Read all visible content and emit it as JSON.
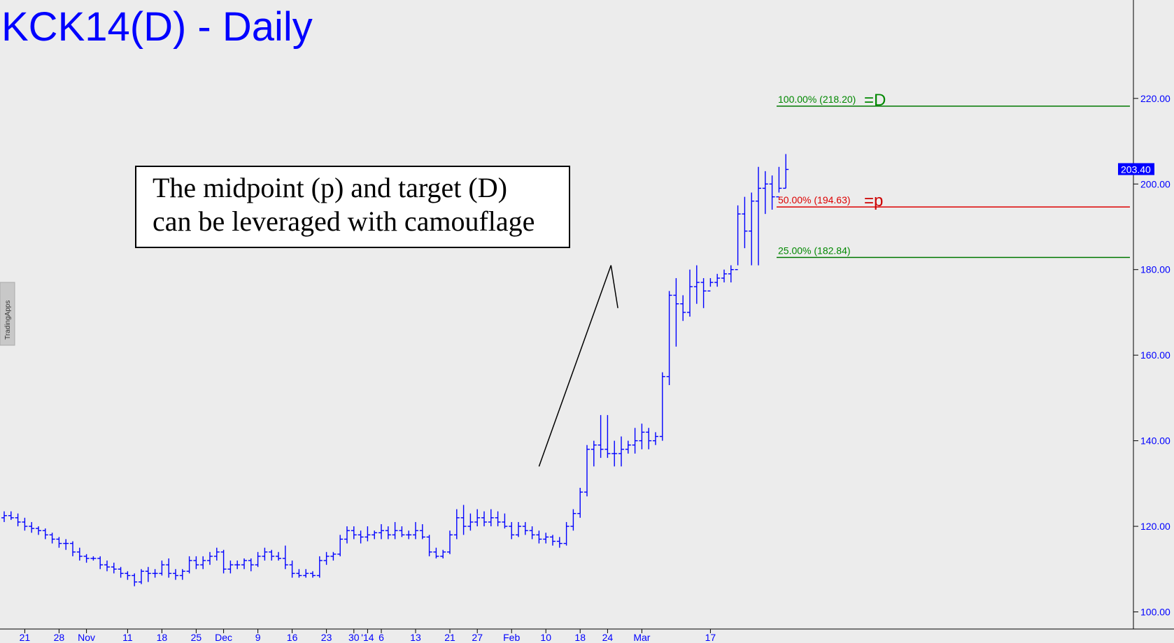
{
  "chart_data": {
    "type": "bar",
    "subtype": "ohlc",
    "title": "KCK14(D) - Daily",
    "annotation": {
      "line1": "The midpoint (p) and target (D)",
      "line2": "can be leveraged with camouflage"
    },
    "watermark": "TradingApps",
    "last_price": "203.40",
    "ylim": [
      96,
      243
    ],
    "y_ticks": [
      "100.00",
      "120.00",
      "140.00",
      "160.00",
      "180.00",
      "200.00",
      "220.00"
    ],
    "x_ticks": [
      {
        "i": 3,
        "label": "21"
      },
      {
        "i": 8,
        "label": "28"
      },
      {
        "i": 12,
        "label": "Nov"
      },
      {
        "i": 18,
        "label": "11"
      },
      {
        "i": 23,
        "label": "18"
      },
      {
        "i": 28,
        "label": "25"
      },
      {
        "i": 32,
        "label": "Dec"
      },
      {
        "i": 37,
        "label": "9"
      },
      {
        "i": 42,
        "label": "16"
      },
      {
        "i": 47,
        "label": "23"
      },
      {
        "i": 51,
        "label": "30"
      },
      {
        "i": 53,
        "label": "'14"
      },
      {
        "i": 55,
        "label": "6"
      },
      {
        "i": 60,
        "label": "13"
      },
      {
        "i": 65,
        "label": "21"
      },
      {
        "i": 69,
        "label": "27"
      },
      {
        "i": 74,
        "label": "Feb"
      },
      {
        "i": 79,
        "label": "10"
      },
      {
        "i": 84,
        "label": "18"
      },
      {
        "i": 88,
        "label": "24"
      },
      {
        "i": 93,
        "label": "Mar"
      },
      {
        "i": 103,
        "label": "17"
      }
    ],
    "fib_levels": [
      {
        "label": "100.00% (218.20)",
        "suffix": "=D",
        "value": 218.2,
        "color": "#007700",
        "label_color": "#008800",
        "suffix_color": "#008800"
      },
      {
        "label": "50.00% (194.63)",
        "suffix": "=p",
        "value": 194.63,
        "color": "#dd0000",
        "label_color": "#dd0000",
        "suffix_color": "#cc0000"
      },
      {
        "label": "25.00% (182.84)",
        "suffix": "",
        "value": 182.84,
        "color": "#007700",
        "label_color": "#008800",
        "suffix_color": "#008800"
      }
    ],
    "pattern_line": [
      {
        "i": 78,
        "v": 134
      },
      {
        "i": 88.5,
        "v": 181
      },
      {
        "i": 89.5,
        "v": 171
      }
    ],
    "ohlc": [
      [
        0,
        122,
        123.5,
        121,
        122.5
      ],
      [
        1,
        122.5,
        123.5,
        121.5,
        122
      ],
      [
        2,
        122,
        123,
        120,
        121
      ],
      [
        3,
        121,
        122,
        119,
        120
      ],
      [
        4,
        120,
        121,
        118.5,
        119.5
      ],
      [
        5,
        119.5,
        120,
        118,
        119
      ],
      [
        6,
        119,
        119.5,
        117,
        118
      ],
      [
        7,
        118,
        118.5,
        116,
        117
      ],
      [
        8,
        117,
        117.5,
        115,
        116
      ],
      [
        9,
        116,
        117,
        114.5,
        116
      ],
      [
        10,
        116,
        116.5,
        113,
        114
      ],
      [
        11,
        114,
        115,
        112,
        113
      ],
      [
        12,
        113,
        113.5,
        111.5,
        112.5
      ],
      [
        13,
        112.5,
        113,
        112,
        112.5
      ],
      [
        14,
        112.5,
        113,
        110,
        111
      ],
      [
        15,
        111,
        112,
        109.5,
        110.5
      ],
      [
        16,
        110.5,
        111.5,
        109,
        110
      ],
      [
        17,
        110,
        110.5,
        108,
        109
      ],
      [
        18,
        109,
        109.5,
        107.5,
        108.5
      ],
      [
        19,
        108.5,
        109,
        106,
        107
      ],
      [
        20,
        107,
        110,
        106.5,
        109.5
      ],
      [
        21,
        109.5,
        110.5,
        107,
        109
      ],
      [
        22,
        109,
        110,
        108,
        109
      ],
      [
        23,
        109,
        112,
        108.5,
        111
      ],
      [
        24,
        111,
        112.5,
        108,
        109
      ],
      [
        25,
        109,
        110,
        107.5,
        108.5
      ],
      [
        26,
        108.5,
        110,
        107.5,
        109.5
      ],
      [
        27,
        109.5,
        113,
        109,
        112
      ],
      [
        28,
        112,
        113,
        110,
        111
      ],
      [
        29,
        111,
        113,
        110,
        112
      ],
      [
        30,
        112,
        114,
        111,
        113
      ],
      [
        31,
        113,
        115,
        112,
        114
      ],
      [
        32,
        114,
        114.5,
        109,
        110
      ],
      [
        33,
        110,
        112,
        109,
        111
      ],
      [
        34,
        111,
        112,
        110,
        111
      ],
      [
        35,
        111,
        112.5,
        110,
        112
      ],
      [
        36,
        112,
        112.5,
        109.5,
        111
      ],
      [
        37,
        111,
        114,
        110.5,
        113
      ],
      [
        38,
        113,
        115,
        112,
        114
      ],
      [
        39,
        114,
        114.5,
        112,
        113
      ],
      [
        40,
        113,
        114,
        112,
        112.5
      ],
      [
        41,
        112.5,
        115.5,
        110,
        111
      ],
      [
        42,
        111,
        112,
        108,
        109
      ],
      [
        43,
        109,
        110,
        108,
        108.5
      ],
      [
        44,
        108.5,
        110,
        108,
        109
      ],
      [
        45,
        109,
        109.5,
        108,
        108.5
      ],
      [
        46,
        108.5,
        113,
        108,
        112
      ],
      [
        47,
        112,
        114,
        111,
        113
      ],
      [
        48,
        113,
        114,
        112,
        113.5
      ],
      [
        49,
        113.5,
        118,
        113,
        117
      ],
      [
        50,
        117,
        120,
        116,
        119
      ],
      [
        51,
        119,
        120,
        117,
        118
      ],
      [
        52,
        118,
        119,
        116,
        117.5
      ],
      [
        53,
        117.5,
        120,
        116.5,
        118
      ],
      [
        54,
        118,
        119,
        117,
        118.5
      ],
      [
        55,
        118.5,
        120.5,
        117,
        119
      ],
      [
        56,
        119,
        120,
        117,
        118
      ],
      [
        57,
        118,
        121,
        117,
        119
      ],
      [
        58,
        119,
        120,
        117.5,
        118
      ],
      [
        59,
        118,
        119,
        117,
        118
      ],
      [
        60,
        118,
        121,
        117,
        119
      ],
      [
        61,
        119,
        120.5,
        117,
        117.5
      ],
      [
        62,
        117.5,
        118,
        113,
        114
      ],
      [
        63,
        114,
        115,
        112.5,
        113
      ],
      [
        64,
        113,
        114.5,
        112.5,
        114
      ],
      [
        65,
        114,
        119,
        113.5,
        118
      ],
      [
        66,
        118,
        124,
        117,
        122
      ],
      [
        67,
        122,
        125,
        118,
        120
      ],
      [
        68,
        120,
        123,
        119,
        121
      ],
      [
        69,
        121,
        124,
        120,
        122
      ],
      [
        70,
        122,
        123.5,
        120,
        121
      ],
      [
        71,
        121,
        124,
        120,
        122
      ],
      [
        72,
        122,
        123.5,
        120,
        121
      ],
      [
        73,
        121,
        123,
        119.5,
        120
      ],
      [
        74,
        120,
        121,
        117,
        118
      ],
      [
        75,
        118,
        121,
        117.5,
        120
      ],
      [
        76,
        120,
        121,
        118,
        119
      ],
      [
        77,
        119,
        120,
        117,
        118
      ],
      [
        78,
        118,
        119,
        116,
        117
      ],
      [
        79,
        117,
        118.5,
        116,
        117.5
      ],
      [
        80,
        117.5,
        118,
        115.5,
        116.5
      ],
      [
        81,
        116.5,
        117.5,
        115,
        116
      ],
      [
        82,
        116,
        121,
        115.5,
        120
      ],
      [
        83,
        120,
        124,
        119,
        123
      ],
      [
        84,
        123,
        129,
        122,
        128
      ],
      [
        85,
        128,
        139,
        127,
        138
      ],
      [
        86,
        138,
        140,
        134,
        139
      ],
      [
        87,
        139,
        146,
        136,
        138
      ],
      [
        88,
        138,
        146,
        136,
        137
      ],
      [
        89,
        137,
        140,
        134,
        137
      ],
      [
        90,
        137,
        141,
        134,
        138
      ],
      [
        91,
        138,
        140,
        137,
        139
      ],
      [
        92,
        139,
        143,
        137,
        140
      ],
      [
        93,
        140,
        144,
        138,
        142
      ],
      [
        94,
        142,
        143,
        138,
        140
      ],
      [
        95,
        140,
        142,
        139,
        141
      ],
      [
        96,
        141,
        156,
        140,
        155
      ],
      [
        97,
        155,
        175,
        153,
        174
      ],
      [
        98,
        174,
        178,
        162,
        172
      ],
      [
        99,
        172,
        174,
        168,
        170
      ],
      [
        100,
        170,
        180,
        169,
        176
      ],
      [
        101,
        176,
        181,
        172,
        177
      ],
      [
        102,
        177,
        178,
        171,
        175
      ],
      [
        103,
        175,
        178,
        176,
        177
      ],
      [
        104,
        177,
        179,
        176,
        178
      ],
      [
        105,
        178,
        180,
        177,
        179
      ],
      [
        106,
        179,
        181,
        177,
        180
      ],
      [
        107,
        180,
        195,
        181,
        193
      ],
      [
        108,
        193,
        197,
        185,
        189
      ],
      [
        109,
        189,
        198,
        181,
        196
      ],
      [
        110,
        196,
        204,
        181,
        199
      ],
      [
        111,
        199,
        203,
        193,
        200
      ],
      [
        112,
        200,
        202,
        194,
        197
      ],
      [
        113,
        197,
        204,
        198,
        199
      ],
      [
        114,
        199,
        207,
        199,
        203.4
      ]
    ]
  }
}
